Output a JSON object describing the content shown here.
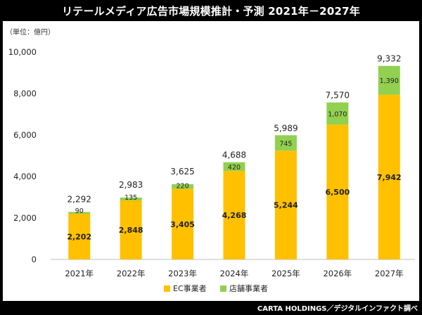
{
  "title": "リテールメディア広告市場規模推計・予測 2021年－2027年",
  "unit_note": "（単位：億円）",
  "footer": "CARTA HOLDINGS／デジタルインファクト調べ",
  "colors": {
    "ec": "#FFC000",
    "store": "#92D050"
  },
  "chart_data": {
    "type": "bar",
    "stacked": true,
    "categories": [
      "2021年",
      "2022年",
      "2023年",
      "2024年",
      "2025年",
      "2026年",
      "2027年"
    ],
    "series": [
      {
        "name": "EC事業者",
        "values": [
          2202,
          2848,
          3405,
          4268,
          5244,
          6500,
          7942
        ]
      },
      {
        "name": "店舗事業者",
        "values": [
          90,
          135,
          220,
          420,
          745,
          1070,
          1390
        ]
      }
    ],
    "totals": [
      2292,
      2983,
      3625,
      4688,
      5989,
      7570,
      9332
    ],
    "ylim": [
      0,
      10000
    ],
    "yticks": [
      0,
      2000,
      4000,
      6000,
      8000,
      10000
    ],
    "ytick_labels": [
      "0",
      "2,000",
      "4,000",
      "6,000",
      "8,000",
      "10,000"
    ],
    "legend_position": "bottom",
    "grid": false
  }
}
